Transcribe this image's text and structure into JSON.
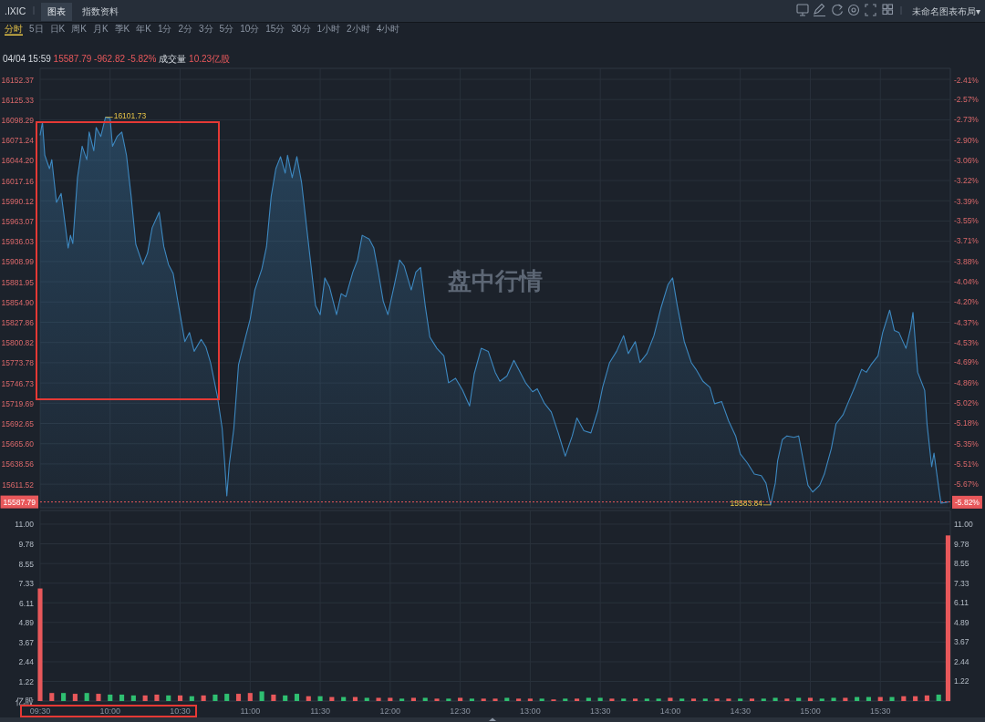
{
  "chart_data": [
    {
      "type": "area",
      "title": ".IXIC",
      "subtitle": "04/04 15:59 15587.79 -962.82 -5.82% 成交量 10.23亿股",
      "annotations": [
        "图表",
        "指数资料",
        "分时 5日 日K 周K 月K 季K 年K 1分 2分 3分 5分 10分 15分 30分 1小时 2小时 4小时",
        "未命名图表布局▾",
        "盘中行情",
        {
          "text": "16101.73",
          "x": 9.9667,
          "y": 16101.73
        },
        {
          "text": "15583.84",
          "x": 14.7167,
          "y": 15583.84
        }
      ],
      "x": [
        9.5,
        9.5167,
        9.5333,
        9.5667,
        9.5833,
        9.6167,
        9.65,
        9.6667,
        9.7,
        9.7167,
        9.7333,
        9.7667,
        9.8,
        9.8333,
        9.85,
        9.8833,
        9.9,
        9.9333,
        9.9667,
        10.0,
        10.0167,
        10.05,
        10.0833,
        10.1167,
        10.15,
        10.1833,
        10.2333,
        10.2667,
        10.3,
        10.35,
        10.3833,
        10.4167,
        10.45,
        10.4833,
        10.5333,
        10.5667,
        10.6,
        10.65,
        10.6833,
        10.7167,
        10.7667,
        10.8,
        10.8167,
        10.8333,
        10.85,
        10.8833,
        10.9167,
        10.9667,
        11.0,
        11.0333,
        11.0833,
        11.1167,
        11.15,
        11.1833,
        11.2167,
        11.25,
        11.2667,
        11.3,
        11.3333,
        11.3667,
        11.4,
        11.4333,
        11.4667,
        11.5,
        11.5333,
        11.5667,
        11.6167,
        11.65,
        11.6833,
        11.7333,
        11.7667,
        11.8,
        11.85,
        11.8833,
        11.9167,
        11.95,
        11.9833,
        12.0333,
        12.0667,
        12.1,
        12.15,
        12.1833,
        12.2167,
        12.25,
        12.2833,
        12.3333,
        12.3833,
        12.4167,
        12.4667,
        12.5167,
        12.5667,
        12.6,
        12.65,
        12.7,
        12.75,
        12.7833,
        12.8333,
        12.8833,
        12.9167,
        12.9667,
        13.0167,
        13.05,
        13.1,
        13.15,
        13.2,
        13.25,
        13.3,
        13.3333,
        13.3833,
        13.4333,
        13.4833,
        13.5167,
        13.5667,
        13.6167,
        13.6667,
        13.7,
        13.75,
        13.7833,
        13.8333,
        13.8833,
        13.9333,
        13.9833,
        14.0167,
        14.05,
        14.1,
        14.15,
        14.1833,
        14.2333,
        14.2833,
        14.3167,
        14.3667,
        14.4167,
        14.4667,
        14.5,
        14.55,
        14.6,
        14.65,
        14.6833,
        14.7167,
        14.75,
        14.7667,
        14.8,
        14.8333,
        14.8833,
        14.9167,
        14.95,
        14.9833,
        15.0167,
        15.0667,
        15.1,
        15.15,
        15.1833,
        15.2333,
        15.2667,
        15.3167,
        15.3667,
        15.4,
        15.4333,
        15.4833,
        15.5167,
        15.5667,
        15.6,
        15.6333,
        15.6833,
        15.7167,
        15.7333,
        15.7667,
        15.8167,
        15.8333,
        15.8667,
        15.8833,
        15.9167,
        15.9333,
        15.9833
      ],
      "values": [
        16078,
        16095,
        16051,
        16033,
        16045,
        15988,
        16000,
        15976,
        15927,
        15944,
        15933,
        16021,
        16063,
        16045,
        16082,
        16057,
        16088,
        16076,
        16101.73,
        16100,
        16063,
        16076,
        16082,
        16051,
        15996,
        15932,
        15905,
        15920,
        15954,
        15975,
        15929,
        15905,
        15893,
        15856,
        15802,
        15814,
        15789,
        15805,
        15795,
        15774,
        15728,
        15686,
        15643,
        15596,
        15637,
        15686,
        15771,
        15808,
        15832,
        15871,
        15899,
        15929,
        15996,
        16033,
        16049,
        16027,
        16051,
        16021,
        16049,
        16015,
        15960,
        15905,
        15850,
        15838,
        15887,
        15875,
        15838,
        15866,
        15862,
        15895,
        15911,
        15944,
        15939,
        15927,
        15893,
        15856,
        15838,
        15881,
        15911,
        15903,
        15871,
        15895,
        15901,
        15850,
        15808,
        15793,
        15783,
        15747,
        15753,
        15737,
        15716,
        15759,
        15793,
        15789,
        15761,
        15749,
        15756,
        15777,
        15765,
        15747,
        15735,
        15739,
        15720,
        15708,
        15680,
        15649,
        15676,
        15700,
        15683,
        15680,
        15710,
        15741,
        15774,
        15789,
        15810,
        15786,
        15802,
        15774,
        15786,
        15810,
        15847,
        15878,
        15887,
        15850,
        15802,
        15774,
        15765,
        15749,
        15741,
        15719,
        15722,
        15696,
        15676,
        15652,
        15640,
        15625,
        15623,
        15613,
        15583.84,
        15613,
        15643,
        15671,
        15676,
        15674,
        15676,
        15643,
        15610,
        15601,
        15610,
        15625,
        15659,
        15692,
        15704,
        15719,
        15741,
        15765,
        15761,
        15771,
        15783,
        15814,
        15844,
        15817,
        15814,
        15793,
        15820,
        15841,
        15761,
        15737,
        15692,
        15635,
        15653,
        15607,
        15586,
        15587.79
      ],
      "color": "#3d88c0",
      "xlim": [
        9.5,
        16.0
      ],
      "xticks": [
        {
          "value": 9.5,
          "label": null
        },
        {
          "value": 10.0,
          "label": null
        },
        {
          "value": 10.5,
          "label": null
        },
        {
          "value": 11.0,
          "label": null
        },
        {
          "value": 11.5,
          "label": null
        },
        {
          "value": 12.0,
          "label": null
        },
        {
          "value": 12.5,
          "label": null
        },
        {
          "value": 13.0,
          "label": null
        },
        {
          "value": 13.5,
          "label": null
        },
        {
          "value": 14.0,
          "label": null
        },
        {
          "value": 14.5,
          "label": null
        },
        {
          "value": 15.0,
          "label": null
        },
        {
          "value": 15.5,
          "label": null
        }
      ],
      "ylim": [
        15580,
        16167
      ],
      "yticks": [
        16152.37,
        16125.33,
        16098.29,
        16071.24,
        {
          "value": 16044.2,
          "label": "16044.20"
        },
        16017.16,
        15990.12,
        15963.07,
        15936.03,
        15908.99,
        15881.95,
        {
          "value": 15854.9,
          "label": "15854.90"
        },
        15827.86,
        15800.82,
        15773.78,
        15746.73,
        15719.69,
        15692.65,
        {
          "value": 15665.6,
          "label": "15665.60"
        },
        15638.56,
        15611.52
      ],
      "y2lim": [
        -5.865,
        -2.318
      ],
      "y2ticks": [
        {
          "value": -2.41,
          "label": "-2.41%"
        },
        {
          "value": -2.57,
          "label": "-2.57%"
        },
        {
          "value": -2.73,
          "label": "-2.73%"
        },
        {
          "value": -2.9,
          "label": "-2.90%"
        },
        {
          "value": -3.06,
          "label": "-3.06%"
        },
        {
          "value": -3.22,
          "label": "-3.22%"
        },
        {
          "value": -3.39,
          "label": "-3.39%"
        },
        {
          "value": -3.55,
          "label": "-3.55%"
        },
        {
          "value": -3.71,
          "label": "-3.71%"
        },
        {
          "value": -3.88,
          "label": "-3.88%"
        },
        {
          "value": -4.04,
          "label": "-4.04%"
        },
        {
          "value": -4.2,
          "label": "-4.20%"
        },
        {
          "value": -4.37,
          "label": "-4.37%"
        },
        {
          "value": -4.53,
          "label": "-4.53%"
        },
        {
          "value": -4.69,
          "label": "-4.69%"
        },
        {
          "value": -4.86,
          "label": "-4.86%"
        },
        {
          "value": -5.02,
          "label": "-5.02%"
        },
        {
          "value": -5.18,
          "label": "-5.18%"
        },
        {
          "value": -5.35,
          "label": "-5.35%"
        },
        {
          "value": -5.51,
          "label": "-5.51%"
        },
        {
          "value": -5.67,
          "label": "-5.67%"
        },
        {
          "value": -5.82,
          "label": "-5.82%"
        }
      ],
      "tick_labels": "y",
      "grid": true,
      "ref_lines": [
        {
          "axis": "y",
          "value": 15587.79,
          "label": "15587.79",
          "color": "#e8585b",
          "line_style": "dotted"
        }
      ]
    },
    {
      "type": "bar",
      "x": [
        9.5,
        9.5833,
        9.6667,
        9.75,
        9.8333,
        9.9167,
        10.0,
        10.0833,
        10.1667,
        10.25,
        10.3333,
        10.4167,
        10.5,
        10.5833,
        10.6667,
        10.75,
        10.8333,
        10.9167,
        11.0,
        11.0833,
        11.1667,
        11.25,
        11.3333,
        11.4167,
        11.5,
        11.5833,
        11.6667,
        11.75,
        11.8333,
        11.9167,
        12.0,
        12.0833,
        12.1667,
        12.25,
        12.3333,
        12.4167,
        12.5,
        12.5833,
        12.6667,
        12.75,
        12.8333,
        12.9167,
        13.0,
        13.0833,
        13.1667,
        13.25,
        13.3333,
        13.4167,
        13.5,
        13.5833,
        13.6667,
        13.75,
        13.8333,
        13.9167,
        14.0,
        14.0833,
        14.1667,
        14.25,
        14.3333,
        14.4167,
        14.5,
        14.5833,
        14.6667,
        14.75,
        14.8333,
        14.9167,
        15.0,
        15.0833,
        15.1667,
        15.25,
        15.3333,
        15.4167,
        15.5,
        15.5833,
        15.6667,
        15.75,
        15.8333,
        15.9167,
        15.9833
      ],
      "values": [
        7.0,
        0.5,
        0.5,
        0.45,
        0.5,
        0.45,
        0.4,
        0.4,
        0.35,
        0.35,
        0.4,
        0.35,
        0.35,
        0.3,
        0.35,
        0.4,
        0.45,
        0.45,
        0.5,
        0.6,
        0.4,
        0.35,
        0.45,
        0.3,
        0.3,
        0.25,
        0.25,
        0.25,
        0.2,
        0.2,
        0.2,
        0.15,
        0.2,
        0.2,
        0.15,
        0.15,
        0.2,
        0.15,
        0.15,
        0.15,
        0.2,
        0.15,
        0.15,
        0.15,
        0.1,
        0.15,
        0.15,
        0.2,
        0.2,
        0.15,
        0.15,
        0.15,
        0.15,
        0.15,
        0.2,
        0.15,
        0.15,
        0.15,
        0.15,
        0.15,
        0.15,
        0.15,
        0.15,
        0.2,
        0.15,
        0.2,
        0.2,
        0.15,
        0.2,
        0.2,
        0.25,
        0.25,
        0.25,
        0.25,
        0.3,
        0.3,
        0.35,
        0.4,
        10.3
      ],
      "colors": [
        "#e8585b",
        "#e8585b",
        "#2fbf71",
        "#e8585b",
        "#2fbf71",
        "#e8585b",
        "#2fbf71",
        "#2fbf71",
        "#2fbf71",
        "#e8585b",
        "#e8585b",
        "#2fbf71",
        "#e8585b",
        "#2fbf71",
        "#e8585b",
        "#2fbf71",
        "#2fbf71",
        "#e8585b",
        "#e8585b",
        "#2fbf71",
        "#e8585b",
        "#2fbf71",
        "#2fbf71",
        "#e8585b",
        "#2fbf71",
        "#e8585b",
        "#2fbf71",
        "#e8585b",
        "#2fbf71",
        "#e8585b",
        "#e8585b",
        "#2fbf71",
        "#e8585b",
        "#2fbf71",
        "#e8585b",
        "#2fbf71",
        "#e8585b",
        "#2fbf71",
        "#e8585b",
        "#e8585b",
        "#2fbf71",
        "#e8585b",
        "#e8585b",
        "#2fbf71",
        "#e8585b",
        "#2fbf71",
        "#e8585b",
        "#2fbf71",
        "#2fbf71",
        "#e8585b",
        "#2fbf71",
        "#e8585b",
        "#2fbf71",
        "#2fbf71",
        "#e8585b",
        "#2fbf71",
        "#e8585b",
        "#2fbf71",
        "#e8585b",
        "#e8585b",
        "#2fbf71",
        "#e8585b",
        "#2fbf71",
        "#2fbf71",
        "#e8585b",
        "#2fbf71",
        "#e8585b",
        "#2fbf71",
        "#2fbf71",
        "#e8585b",
        "#2fbf71",
        "#2fbf71",
        "#e8585b",
        "#2fbf71",
        "#e8585b",
        "#e8585b",
        "#e8585b",
        "#2fbf71",
        "#e8585b"
      ],
      "xlim": [
        9.5,
        16.0
      ],
      "xticks": [
        {
          "value": 9.5,
          "label": "09:30"
        },
        {
          "value": 10.0,
          "label": "10:00"
        },
        {
          "value": 10.5,
          "label": "10:30"
        },
        {
          "value": 11.0,
          "label": "11:00"
        },
        {
          "value": 11.5,
          "label": "11:30"
        },
        {
          "value": 12.0,
          "label": "12:00"
        },
        {
          "value": 12.5,
          "label": "12:30"
        },
        {
          "value": 13.0,
          "label": "13:00"
        },
        {
          "value": 13.5,
          "label": "13:30"
        },
        {
          "value": 14.0,
          "label": "14:00"
        },
        {
          "value": 14.5,
          "label": "14:30"
        },
        {
          "value": 15.0,
          "label": "15:00"
        },
        {
          "value": 15.5,
          "label": "15:30"
        }
      ],
      "ylim": [
        0,
        11.85
      ],
      "yticks": [
        {
          "value": 0,
          "label": "亿股"
        },
        1.22,
        2.44,
        3.67,
        4.89,
        6.11,
        7.33,
        8.55,
        9.78,
        {
          "value": 11,
          "label": "11.00"
        }
      ],
      "y2lim": [
        0,
        11.85
      ],
      "y2ticks": [
        {
          "value": 0,
          "label": null
        },
        1.22,
        2.44,
        3.67,
        4.89,
        6.11,
        7.33,
        8.55,
        9.78,
        {
          "value": 11,
          "label": "11.00"
        }
      ],
      "grid": true
    }
  ]
}
